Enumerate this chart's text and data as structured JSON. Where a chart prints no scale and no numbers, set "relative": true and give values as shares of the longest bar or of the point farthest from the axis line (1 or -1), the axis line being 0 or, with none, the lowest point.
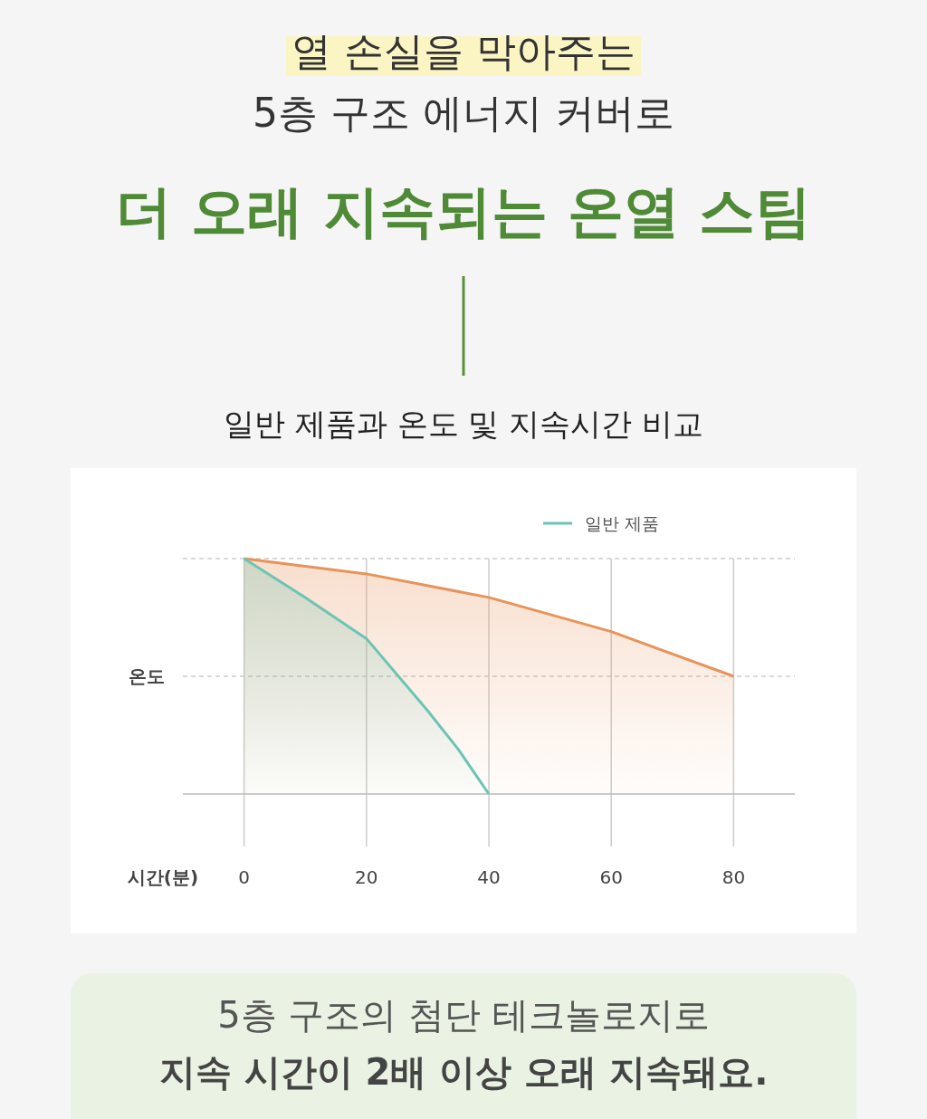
{
  "chart_data": {
    "type": "area",
    "title": "일반 제품과 온도 및 지속시간 비교",
    "xlabel": "시간(분)",
    "ylabel": "온도",
    "relative": true,
    "xlim": [
      -10,
      90
    ],
    "xticks": [
      0,
      20,
      40,
      60,
      80
    ],
    "grid": "x",
    "legend": "top right",
    "series": [
      {
        "name": "일반 제품",
        "color": "#6cc4b4",
        "x": [
          0,
          10,
          20,
          30,
          35,
          40
        ],
        "values": [
          1,
          0.835,
          0.66,
          0.354,
          0.19,
          0
        ]
      },
      {
        "color": "#e8935a",
        "x": [
          0,
          20,
          40,
          60,
          80
        ],
        "values": [
          1,
          0.935,
          0.835,
          0.69,
          0.5
        ]
      }
    ],
    "ref_lines": [
      {
        "axis": "y",
        "value": 1,
        "line_style": "dashed"
      },
      {
        "axis": "y",
        "value": 0.5,
        "line_style": "dashed"
      }
    ],
    "annotations": [
      "열 손실을 막아주는",
      "5층 구조 에너지 커버로",
      "더 오래 지속되는 온열 스팀",
      "5층 구조의 첨단 테크놀로지로",
      "지속 시간이 2배 이상 오래 지속돼요."
    ]
  }
}
